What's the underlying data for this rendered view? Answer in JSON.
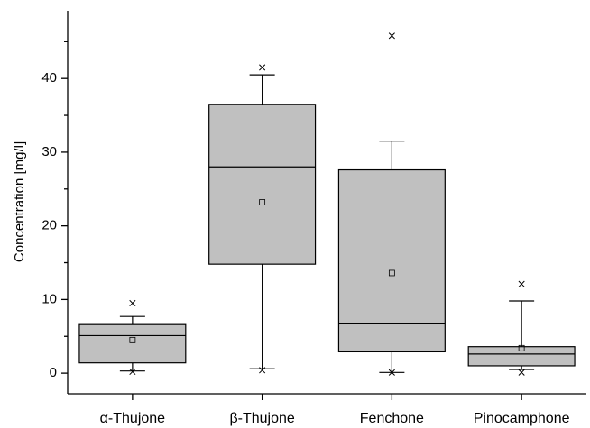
{
  "chart_data": {
    "type": "box",
    "ylabel": "Concentration [mg/l]",
    "categories": [
      "α-Thujone",
      "β-Thujone",
      "Fenchone",
      "Pinocamphone"
    ],
    "boxes": [
      {
        "whisker_low": 0.3,
        "q1": 1.4,
        "median": 5.1,
        "q3": 6.6,
        "whisker_high": 7.7,
        "mean": 4.5,
        "min": 0.2,
        "max": 9.5
      },
      {
        "whisker_low": 0.6,
        "q1": 14.8,
        "median": 28.0,
        "q3": 36.5,
        "whisker_high": 40.5,
        "mean": 23.2,
        "min": 0.4,
        "max": 41.5
      },
      {
        "whisker_low": 0.1,
        "q1": 2.9,
        "median": 6.7,
        "q3": 27.6,
        "whisker_high": 31.5,
        "mean": 13.6,
        "min": 0.1,
        "max": 45.8
      },
      {
        "whisker_low": 0.5,
        "q1": 1.0,
        "median": 2.6,
        "q3": 3.6,
        "whisker_high": 9.8,
        "mean": 3.4,
        "min": 0.1,
        "max": 12.1
      }
    ],
    "color": "#c0c0c0",
    "ylim": [
      -2.8,
      49.2
    ],
    "yticks": [
      0,
      10,
      20,
      30,
      40
    ],
    "yminorticks": [
      5,
      15,
      25,
      35,
      45
    ]
  }
}
